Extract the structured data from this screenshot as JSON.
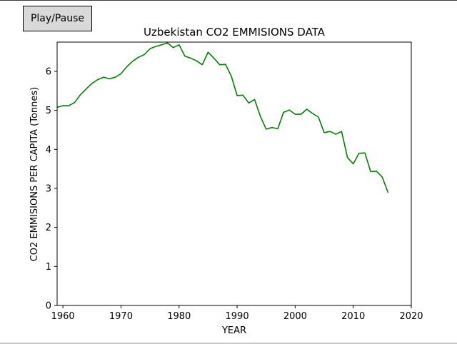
{
  "controls": {
    "play_pause_label": "Play/Pause"
  },
  "chart_data": {
    "type": "line",
    "title": "Uzbekistan CO2 EMMISIONS DATA",
    "xlabel": "YEAR",
    "ylabel": "CO2 EMMISIONS PER CAPITA (Tonnes)",
    "xlim": [
      1959,
      2020
    ],
    "ylim": [
      0,
      6.75
    ],
    "xticks": [
      1960,
      1970,
      1980,
      1990,
      2000,
      2010,
      2020
    ],
    "yticks": [
      0,
      1,
      2,
      3,
      4,
      5,
      6
    ],
    "grid": false,
    "line_color": "#008000",
    "series": [
      {
        "x": [
          1959,
          1960,
          1961,
          1962,
          1963,
          1964,
          1965,
          1966,
          1967,
          1968,
          1969,
          1970,
          1971,
          1972,
          1973,
          1974,
          1975,
          1976,
          1977,
          1978,
          1979,
          1980,
          1981,
          1982,
          1983,
          1984,
          1985,
          1986,
          1987,
          1988,
          1989,
          1990,
          1991,
          1992,
          1993,
          1994,
          1995,
          1996,
          1997,
          1998,
          1999,
          2000,
          2001,
          2002,
          2003,
          2004,
          2005,
          2006,
          2007,
          2008,
          2009,
          2010,
          2011,
          2012,
          2013,
          2014,
          2015,
          2016
        ],
        "values": [
          5.08,
          5.12,
          5.12,
          5.2,
          5.4,
          5.55,
          5.69,
          5.79,
          5.85,
          5.81,
          5.85,
          5.94,
          6.12,
          6.26,
          6.36,
          6.43,
          6.58,
          6.64,
          6.68,
          6.73,
          6.61,
          6.68,
          6.39,
          6.34,
          6.27,
          6.17,
          6.49,
          6.34,
          6.17,
          6.18,
          5.88,
          5.38,
          5.39,
          5.19,
          5.28,
          4.85,
          4.52,
          4.56,
          4.53,
          4.95,
          5.01,
          4.9,
          4.9,
          5.03,
          4.92,
          4.83,
          4.43,
          4.46,
          4.39,
          4.46,
          3.79,
          3.63,
          3.9,
          3.91,
          3.43,
          3.44,
          3.29,
          2.89
        ]
      }
    ]
  }
}
